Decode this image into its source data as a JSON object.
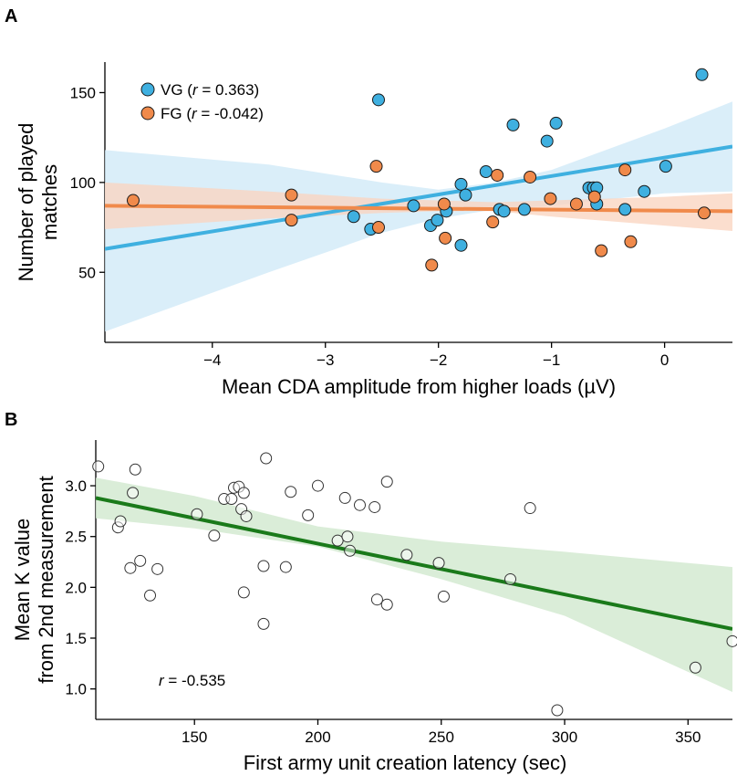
{
  "chart_data": [
    {
      "panel": "A",
      "type": "scatter",
      "xlabel": "Mean CDA amplitude from higher loads (µV)",
      "ylabel": [
        "Number of played",
        "matches"
      ],
      "xlim": [
        -4.95,
        0.6
      ],
      "ylim": [
        11,
        167
      ],
      "xticks": [
        -4,
        -3,
        -2,
        -1,
        0
      ],
      "xtick_labels": [
        "−4",
        "−3",
        "−2",
        "−1",
        "0"
      ],
      "yticks": [
        50,
        100,
        150
      ],
      "ytick_labels": [
        "50",
        "100",
        "150"
      ],
      "legend_position": "top-left",
      "series": [
        {
          "name": "VG",
          "legend_prefix": "VG (",
          "legend_r_symbol": "r",
          "legend_suffix": " = 0.363)",
          "color": "#3fb0e0",
          "band_color": "#cfe9f7",
          "points": [
            [
              -2.75,
              81
            ],
            [
              -2.6,
              74
            ],
            [
              -2.53,
              146
            ],
            [
              -2.22,
              87
            ],
            [
              -2.07,
              76
            ],
            [
              -2.01,
              79
            ],
            [
              -1.93,
              84
            ],
            [
              -1.8,
              65
            ],
            [
              -1.8,
              99
            ],
            [
              -1.76,
              93
            ],
            [
              -1.58,
              106
            ],
            [
              -1.46,
              85
            ],
            [
              -1.42,
              84
            ],
            [
              -1.34,
              132
            ],
            [
              -1.24,
              85
            ],
            [
              -1.04,
              123
            ],
            [
              -0.96,
              133
            ],
            [
              -0.67,
              97
            ],
            [
              -0.63,
              97
            ],
            [
              -0.6,
              97
            ],
            [
              -0.6,
              88
            ],
            [
              -0.35,
              85
            ],
            [
              -0.18,
              95
            ],
            [
              0.01,
              109
            ],
            [
              0.33,
              160
            ]
          ],
          "fit": {
            "x": [
              -4.95,
              0.6
            ],
            "y": [
              63,
              120
            ]
          },
          "ci": {
            "x": [
              -4.95,
              -3.5,
              -2.5,
              -2.0,
              -1.5,
              -1.0,
              0.0,
              0.6
            ],
            "upper": [
              118,
              110,
              100,
              96,
              100,
              107,
              130,
              145
            ],
            "lower": [
              17,
              50,
              72,
              80,
              85,
              87,
              94,
              95
            ]
          }
        },
        {
          "name": "FG",
          "legend_prefix": "FG (",
          "legend_r_symbol": "r",
          "legend_suffix": " = -0.042)",
          "color": "#f08a4b",
          "band_color": "#fad5c0",
          "points": [
            [
              -4.7,
              90
            ],
            [
              -3.3,
              93
            ],
            [
              -3.3,
              79
            ],
            [
              -2.55,
              109
            ],
            [
              -2.53,
              75
            ],
            [
              -2.06,
              54
            ],
            [
              -1.95,
              88
            ],
            [
              -1.94,
              69
            ],
            [
              -1.52,
              78
            ],
            [
              -1.48,
              104
            ],
            [
              -1.19,
              103
            ],
            [
              -1.01,
              91
            ],
            [
              -0.78,
              88
            ],
            [
              -0.62,
              92
            ],
            [
              -0.56,
              62
            ],
            [
              -0.35,
              107
            ],
            [
              -0.3,
              67
            ],
            [
              0.35,
              83
            ]
          ],
          "fit": {
            "x": [
              -4.95,
              0.6
            ],
            "y": [
              87,
              84
            ]
          },
          "ci": {
            "x": [
              -4.95,
              -3.5,
              -2.5,
              -2.0,
              -1.5,
              -1.0,
              0.0,
              0.6
            ],
            "upper": [
              100,
              95,
              91,
              90,
              89,
              90,
              92,
              94
            ],
            "lower": [
              74,
              80,
              83,
              84,
              84,
              81,
              76,
              73
            ]
          }
        }
      ]
    },
    {
      "panel": "B",
      "type": "scatter",
      "xlabel": "First army unit creation latency (sec)",
      "ylabel": [
        "Mean K value",
        "from 2nd measurement"
      ],
      "xlim": [
        110,
        368
      ],
      "ylim": [
        0.7,
        3.45
      ],
      "xticks": [
        150,
        200,
        250,
        300,
        350
      ],
      "xtick_labels": [
        "150",
        "200",
        "250",
        "300",
        "350"
      ],
      "yticks": [
        1.0,
        1.5,
        2.0,
        2.5,
        3.0
      ],
      "ytick_labels": [
        "1.0",
        "1.5",
        "2.0",
        "2.5",
        "3.0"
      ],
      "annotation": {
        "r_symbol": "r",
        "text": " = -0.535"
      },
      "fit_color": "#1a7a1a",
      "band_color": "#d4ead1",
      "points": [
        [
          111,
          3.19
        ],
        [
          119,
          2.59
        ],
        [
          120,
          2.65
        ],
        [
          124,
          2.19
        ],
        [
          125,
          2.93
        ],
        [
          126,
          3.16
        ],
        [
          128,
          2.26
        ],
        [
          132,
          1.92
        ],
        [
          135,
          2.18
        ],
        [
          151,
          2.72
        ],
        [
          158,
          2.51
        ],
        [
          162,
          2.87
        ],
        [
          165,
          2.87
        ],
        [
          166,
          2.98
        ],
        [
          168,
          2.99
        ],
        [
          169,
          2.77
        ],
        [
          170,
          1.95
        ],
        [
          170,
          2.93
        ],
        [
          171,
          2.7
        ],
        [
          178,
          1.64
        ],
        [
          178,
          2.21
        ],
        [
          179,
          3.27
        ],
        [
          187,
          2.2
        ],
        [
          189,
          2.94
        ],
        [
          196,
          2.71
        ],
        [
          200,
          3.0
        ],
        [
          208,
          2.46
        ],
        [
          211,
          2.88
        ],
        [
          212,
          2.5
        ],
        [
          213,
          2.36
        ],
        [
          217,
          2.81
        ],
        [
          223,
          2.79
        ],
        [
          224,
          1.88
        ],
        [
          228,
          1.83
        ],
        [
          228,
          3.04
        ],
        [
          236,
          2.32
        ],
        [
          249,
          2.24
        ],
        [
          251,
          1.91
        ],
        [
          278,
          2.08
        ],
        [
          286,
          2.78
        ],
        [
          297,
          0.79
        ],
        [
          353,
          1.21
        ],
        [
          368,
          1.47
        ]
      ],
      "fit": {
        "x": [
          110,
          368
        ],
        "y": [
          2.88,
          1.59
        ]
      },
      "ci": {
        "x": [
          110,
          150,
          200,
          250,
          300,
          368
        ],
        "upper": [
          3.08,
          2.9,
          2.6,
          2.45,
          2.35,
          2.2
        ],
        "lower": [
          2.68,
          2.58,
          2.4,
          2.08,
          1.72,
          0.97
        ]
      }
    }
  ]
}
